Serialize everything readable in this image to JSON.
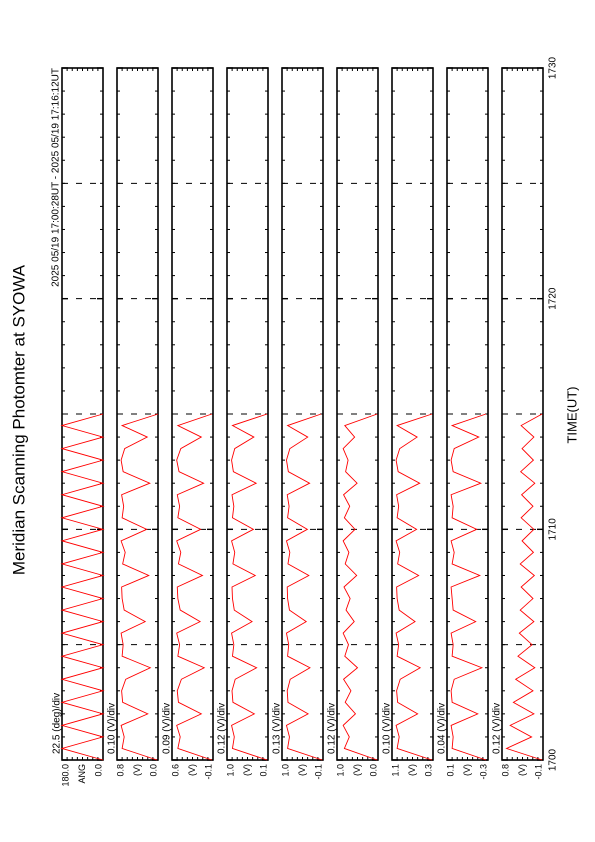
{
  "figure": {
    "title": "Meridian Scanning Photomter at SYOWA",
    "subtitle": "2025 05/19 17:00:28UT - 2025 05/19 17:16:12UT",
    "xlabel": "TIME(UT)",
    "xlim": [
      1700,
      1730
    ],
    "xticks": [
      1700,
      1710,
      1720,
      1730
    ],
    "x": [
      1700,
      1700.5,
      1701,
      1701.5,
      1702,
      1702.5,
      1703,
      1703.5,
      1704,
      1704.5,
      1705,
      1705.5,
      1706,
      1706.5,
      1707,
      1707.5,
      1708,
      1708.5,
      1709,
      1709.5,
      1710,
      1710.5,
      1711,
      1711.5,
      1712,
      1712.5,
      1713,
      1713.5,
      1714,
      1714.5,
      1715
    ]
  },
  "chart_data": [
    {
      "type": "line",
      "scale_label": "22.5 (deg)/div",
      "ylabel": "ANG",
      "color": "#ff0000",
      "ylim": [
        0,
        180
      ],
      "yticks": [
        {
          "value": 0,
          "label": "0.0"
        },
        {
          "value": 180,
          "label": "180.0"
        }
      ],
      "values": [
        0,
        180,
        0,
        180,
        0,
        180,
        0,
        180,
        0,
        180,
        0,
        180,
        0,
        180,
        0,
        180,
        0,
        180,
        0,
        180,
        0,
        180,
        0,
        180,
        0,
        180,
        0,
        180,
        0,
        180,
        0
      ]
    },
    {
      "type": "line",
      "scale_label": "0.10 (V)/div",
      "ylabel": "(V)",
      "color": "#ff0000",
      "ylim": [
        0,
        0.8
      ],
      "yticks": [
        {
          "value": 0,
          "label": "0.0"
        },
        0.8
      ],
      "values": [
        0.02,
        0.7,
        0.66,
        0.72,
        0.2,
        0.69,
        0.71,
        0.63,
        0.15,
        0.7,
        0.68,
        0.72,
        0.25,
        0.66,
        0.7,
        0.71,
        0.18,
        0.69,
        0.64,
        0.72,
        0.22,
        0.7,
        0.67,
        0.71,
        0.16,
        0.68,
        0.72,
        0.65,
        0.21,
        0.7,
        0.0
      ]
    },
    {
      "type": "line",
      "scale_label": "0.09 (V)/div",
      "ylabel": "(V)",
      "color": "#ff0000",
      "ylim": [
        -0.1,
        0.6
      ],
      "yticks": [
        -0.1,
        0.6
      ],
      "values": [
        -0.08,
        0.5,
        0.46,
        0.52,
        0.1,
        0.49,
        0.51,
        0.44,
        0.05,
        0.5,
        0.47,
        0.52,
        0.12,
        0.46,
        0.5,
        0.51,
        0.08,
        0.49,
        0.45,
        0.52,
        0.11,
        0.5,
        0.47,
        0.51,
        0.06,
        0.48,
        0.52,
        0.45,
        0.1,
        0.5,
        -0.08
      ]
    },
    {
      "type": "line",
      "scale_label": "0.12 (V)/div",
      "ylabel": "(V)",
      "color": "#ff0000",
      "ylim": [
        0.1,
        1.0
      ],
      "yticks": [
        0.1,
        {
          "value": 1,
          "label": "1.0"
        }
      ],
      "values": [
        0.12,
        0.88,
        0.84,
        0.9,
        0.4,
        0.87,
        0.89,
        0.82,
        0.35,
        0.88,
        0.85,
        0.9,
        0.45,
        0.84,
        0.88,
        0.89,
        0.38,
        0.87,
        0.83,
        0.9,
        0.42,
        0.88,
        0.85,
        0.89,
        0.36,
        0.86,
        0.9,
        0.83,
        0.41,
        0.88,
        0.12
      ]
    },
    {
      "type": "line",
      "scale_label": "0.13 (V)/div",
      "ylabel": "(V)",
      "color": "#ff0000",
      "ylim": [
        -0.1,
        1.0
      ],
      "yticks": [
        -0.1,
        {
          "value": 1,
          "label": "1.0"
        }
      ],
      "values": [
        -0.08,
        0.85,
        0.8,
        0.88,
        0.3,
        0.84,
        0.86,
        0.78,
        0.25,
        0.85,
        0.82,
        0.88,
        0.35,
        0.8,
        0.85,
        0.86,
        0.28,
        0.84,
        0.79,
        0.88,
        0.32,
        0.85,
        0.81,
        0.86,
        0.26,
        0.83,
        0.88,
        0.79,
        0.31,
        0.85,
        -0.05
      ]
    },
    {
      "type": "line",
      "scale_label": "0.12 (V)/div",
      "ylabel": "(V)",
      "color": "#ff0000",
      "ylim": [
        0,
        1.0
      ],
      "yticks": [
        {
          "value": 0,
          "label": "0.0"
        },
        {
          "value": 1,
          "label": "1.0"
        }
      ],
      "values": [
        0.02,
        0.82,
        0.7,
        0.85,
        0.55,
        0.8,
        0.66,
        0.84,
        0.5,
        0.81,
        0.72,
        0.85,
        0.58,
        0.78,
        0.68,
        0.83,
        0.52,
        0.8,
        0.71,
        0.85,
        0.56,
        0.82,
        0.69,
        0.84,
        0.51,
        0.79,
        0.73,
        0.85,
        0.57,
        0.81,
        0.02
      ]
    },
    {
      "type": "line",
      "scale_label": "0.10 (V)/div",
      "ylabel": "(V)",
      "color": "#ff0000",
      "ylim": [
        0.3,
        1.1
      ],
      "yticks": [
        0.3,
        1.1
      ],
      "values": [
        0.32,
        1.0,
        0.96,
        1.02,
        0.6,
        0.99,
        1.01,
        0.94,
        0.55,
        1.0,
        0.97,
        1.02,
        0.65,
        0.96,
        1.0,
        1.01,
        0.58,
        0.99,
        0.95,
        1.02,
        0.62,
        1.0,
        0.97,
        1.01,
        0.56,
        0.98,
        1.02,
        0.95,
        0.61,
        1.0,
        0.32
      ]
    },
    {
      "type": "line",
      "scale_label": "0.04 (V)/div",
      "ylabel": "(V)",
      "color": "#ff0000",
      "ylim": [
        -0.3,
        0.1
      ],
      "yticks": [
        -0.3,
        0.1
      ],
      "values": [
        -0.28,
        0.05,
        0.04,
        0.06,
        -0.2,
        0.05,
        0.06,
        0.03,
        -0.24,
        0.05,
        0.04,
        0.06,
        -0.18,
        0.04,
        0.05,
        0.06,
        -0.22,
        0.05,
        0.03,
        0.06,
        -0.19,
        0.05,
        0.04,
        0.06,
        -0.23,
        0.04,
        0.06,
        0.03,
        -0.21,
        0.05,
        -0.28
      ]
    },
    {
      "type": "line",
      "scale_label": "0.12 (V)/div",
      "ylabel": "(V)",
      "color": "#ff0000",
      "ylim": [
        -0.1,
        0.8
      ],
      "yticks": [
        -0.1,
        0.8
      ],
      "values": [
        -0.08,
        0.7,
        0.15,
        0.62,
        0.1,
        0.55,
        0.12,
        0.5,
        0.08,
        0.45,
        0.14,
        0.42,
        0.1,
        0.4,
        0.12,
        0.38,
        0.09,
        0.4,
        0.11,
        0.36,
        0.1,
        0.38,
        0.12,
        0.37,
        0.08,
        0.39,
        0.11,
        0.36,
        0.1,
        0.38,
        -0.08
      ]
    }
  ]
}
